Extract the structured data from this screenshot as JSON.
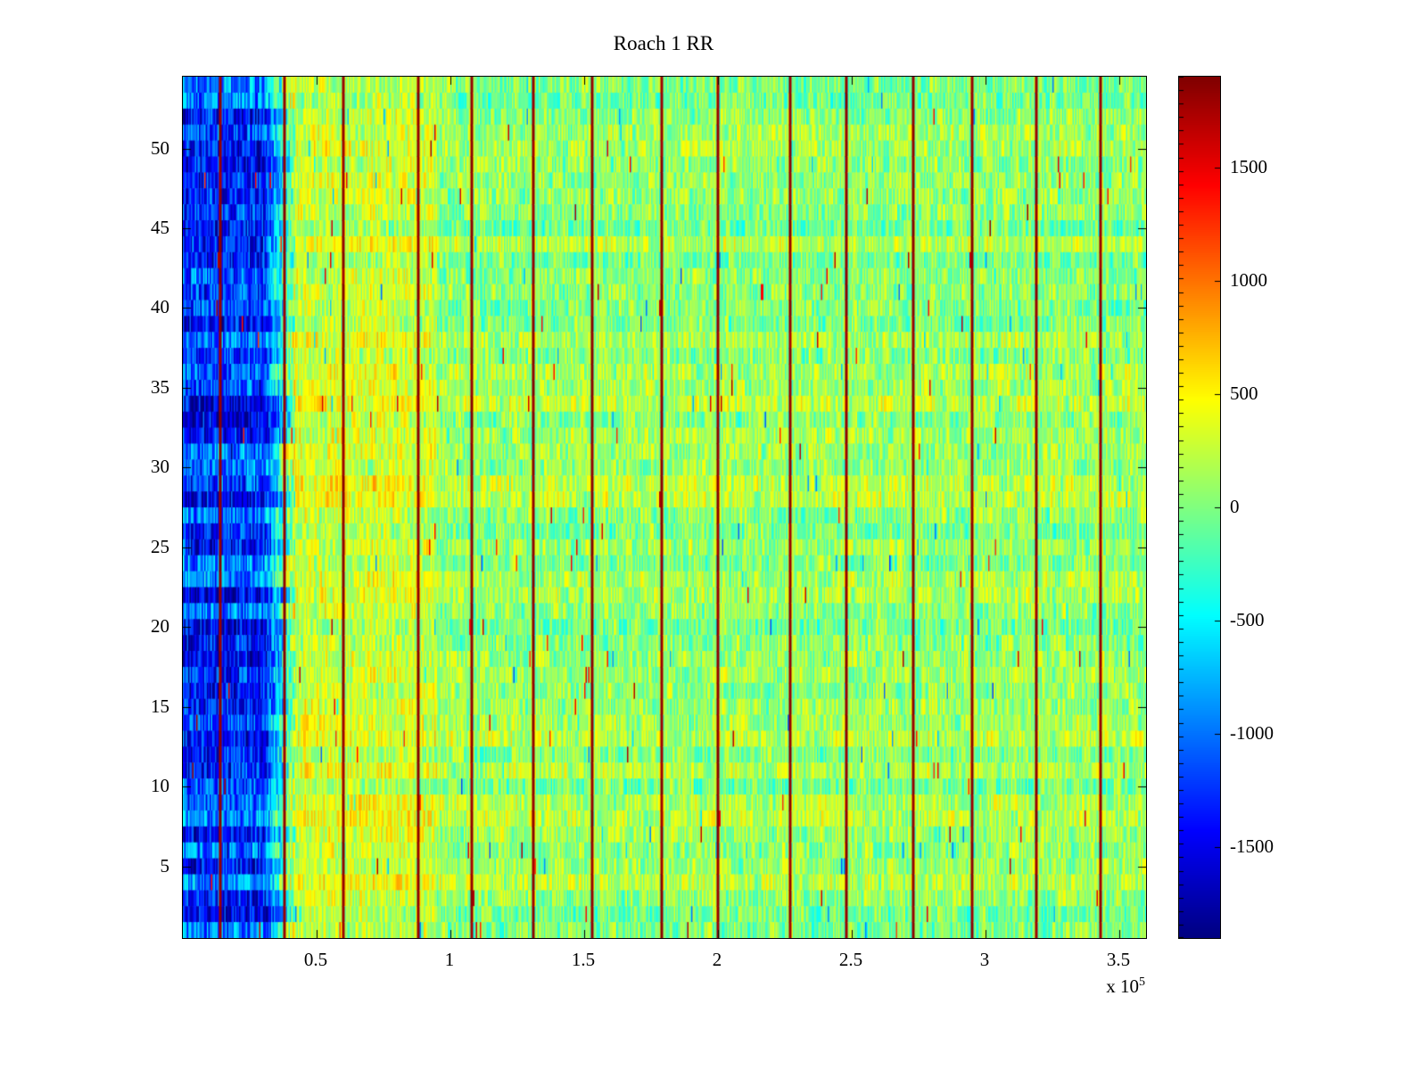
{
  "figure": {
    "background": "#ffffff",
    "axis_color": "#000000"
  },
  "chart_data": {
    "type": "heatmap",
    "title": "Roach 1 RR",
    "colormap": "jet",
    "color_limits": [
      -1900,
      1900
    ],
    "x_axis": {
      "range_x1e5": [
        0,
        3.6
      ],
      "multiplier_prefix": "x 10",
      "multiplier_exponent": "5",
      "ticks": [
        {
          "value": 0.5,
          "label": "0.5"
        },
        {
          "value": 1.0,
          "label": "1"
        },
        {
          "value": 1.5,
          "label": "1.5"
        },
        {
          "value": 2.0,
          "label": "2"
        },
        {
          "value": 2.5,
          "label": "2.5"
        },
        {
          "value": 3.0,
          "label": "3"
        },
        {
          "value": 3.5,
          "label": "3.5"
        }
      ]
    },
    "y_axis": {
      "range": [
        0.5,
        54.5
      ],
      "rows": 54,
      "ticks": [
        {
          "value": 5,
          "label": "5"
        },
        {
          "value": 10,
          "label": "10"
        },
        {
          "value": 15,
          "label": "15"
        },
        {
          "value": 20,
          "label": "20"
        },
        {
          "value": 25,
          "label": "25"
        },
        {
          "value": 30,
          "label": "30"
        },
        {
          "value": 35,
          "label": "35"
        },
        {
          "value": 40,
          "label": "40"
        },
        {
          "value": 45,
          "label": "45"
        },
        {
          "value": 50,
          "label": "50"
        }
      ]
    },
    "colorbar": {
      "segments": 64,
      "ticks": [
        {
          "value": 1500,
          "label": "1500"
        },
        {
          "value": 1000,
          "label": "1000"
        },
        {
          "value": 500,
          "label": "500"
        },
        {
          "value": 0,
          "label": "0"
        },
        {
          "value": -500,
          "label": "-500"
        },
        {
          "value": -1000,
          "label": "-1000"
        },
        {
          "value": -1500,
          "label": "-1500"
        }
      ]
    },
    "pattern": {
      "description": "Noisy RR-interval heatmap, 54 trial rows vs time samples. Strongly negative (dark blue) block spanning all rows for x below ~0.42e5, warm yellow-orange band ~0.45e5 to 0.95e5, mixed green/cyan speckle noise elsewhere, crossed by narrow dark-red vertical event lines.",
      "columns": 720,
      "regions": [
        {
          "x_start": 0.0,
          "x_end": 0.3,
          "mean": -1250,
          "noise": 480
        },
        {
          "x_start": 0.3,
          "x_end": 0.42,
          "mean_start": -1250,
          "mean_end": 150,
          "noise": 480
        },
        {
          "x_start": 0.42,
          "x_end": 0.95,
          "mean": 300,
          "noise": 330
        },
        {
          "x_start": 0.95,
          "x_end": 3.6,
          "mean": 90,
          "noise": 330
        }
      ],
      "event_lines_x1e5": [
        0.14,
        0.38,
        0.6,
        0.88,
        1.08,
        1.31,
        1.53,
        1.79,
        2.0,
        2.27,
        2.48,
        2.73,
        2.95,
        3.19,
        3.43
      ],
      "event_line_value": 1800
    }
  }
}
